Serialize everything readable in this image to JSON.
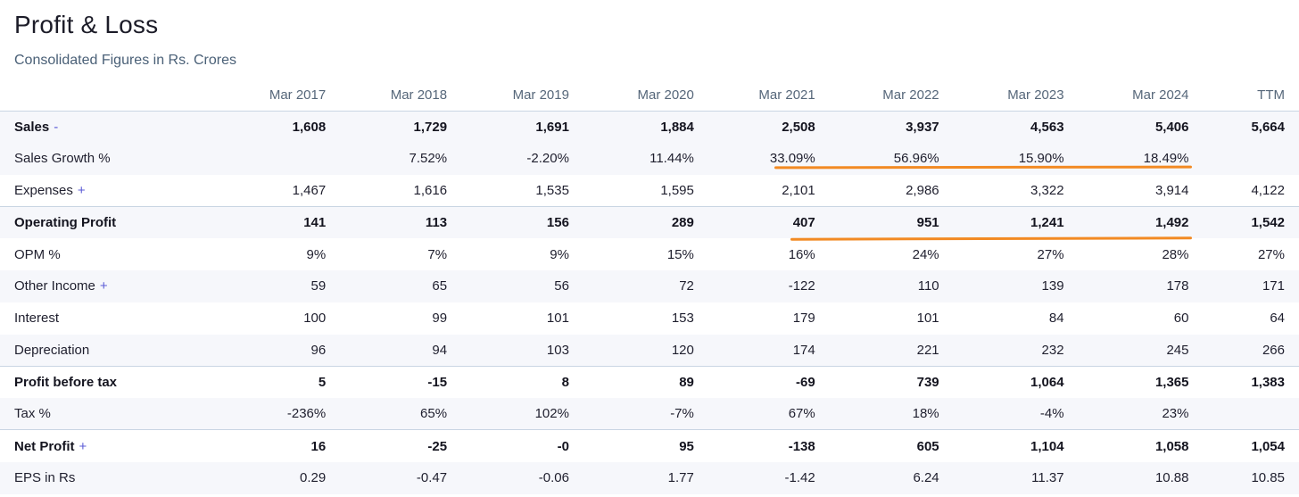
{
  "title": "Profit & Loss",
  "subtitle": "Consolidated Figures in Rs. Crores",
  "columns": [
    "Mar 2017",
    "Mar 2018",
    "Mar 2019",
    "Mar 2020",
    "Mar 2021",
    "Mar 2022",
    "Mar 2023",
    "Mar 2024",
    "TTM"
  ],
  "accent_color": "#f28a23",
  "rows": [
    {
      "label": "Sales",
      "expander": "-",
      "values": [
        "1,608",
        "1,729",
        "1,691",
        "1,884",
        "2,508",
        "3,937",
        "4,563",
        "5,406",
        "5,664"
      ]
    },
    {
      "label": "Sales Growth %",
      "expander": "",
      "values": [
        "",
        "7.52%",
        "-2.20%",
        "11.44%",
        "33.09%",
        "56.96%",
        "15.90%",
        "18.49%",
        ""
      ]
    },
    {
      "label": "Expenses",
      "expander": "+",
      "values": [
        "1,467",
        "1,616",
        "1,535",
        "1,595",
        "2,101",
        "2,986",
        "3,322",
        "3,914",
        "4,122"
      ]
    },
    {
      "label": "Operating Profit",
      "expander": "",
      "values": [
        "141",
        "113",
        "156",
        "289",
        "407",
        "951",
        "1,241",
        "1,492",
        "1,542"
      ]
    },
    {
      "label": "OPM %",
      "expander": "",
      "values": [
        "9%",
        "7%",
        "9%",
        "15%",
        "16%",
        "24%",
        "27%",
        "28%",
        "27%"
      ]
    },
    {
      "label": "Other Income",
      "expander": "+",
      "values": [
        "59",
        "65",
        "56",
        "72",
        "-122",
        "110",
        "139",
        "178",
        "171"
      ]
    },
    {
      "label": "Interest",
      "expander": "",
      "values": [
        "100",
        "99",
        "101",
        "153",
        "179",
        "101",
        "84",
        "60",
        "64"
      ]
    },
    {
      "label": "Depreciation",
      "expander": "",
      "values": [
        "96",
        "94",
        "103",
        "120",
        "174",
        "221",
        "232",
        "245",
        "266"
      ]
    },
    {
      "label": "Profit before tax",
      "expander": "",
      "values": [
        "5",
        "-15",
        "8",
        "89",
        "-69",
        "739",
        "1,064",
        "1,365",
        "1,383"
      ]
    },
    {
      "label": "Tax %",
      "expander": "",
      "values": [
        "-236%",
        "65%",
        "102%",
        "-7%",
        "67%",
        "18%",
        "-4%",
        "23%",
        ""
      ]
    },
    {
      "label": "Net Profit",
      "expander": "+",
      "values": [
        "16",
        "-25",
        "-0",
        "95",
        "-138",
        "605",
        "1,104",
        "1,058",
        "1,054"
      ]
    },
    {
      "label": "EPS in Rs",
      "expander": "",
      "values": [
        "0.29",
        "-0.47",
        "-0.06",
        "1.77",
        "-1.42",
        "6.24",
        "11.37",
        "10.88",
        "10.85"
      ]
    }
  ]
}
